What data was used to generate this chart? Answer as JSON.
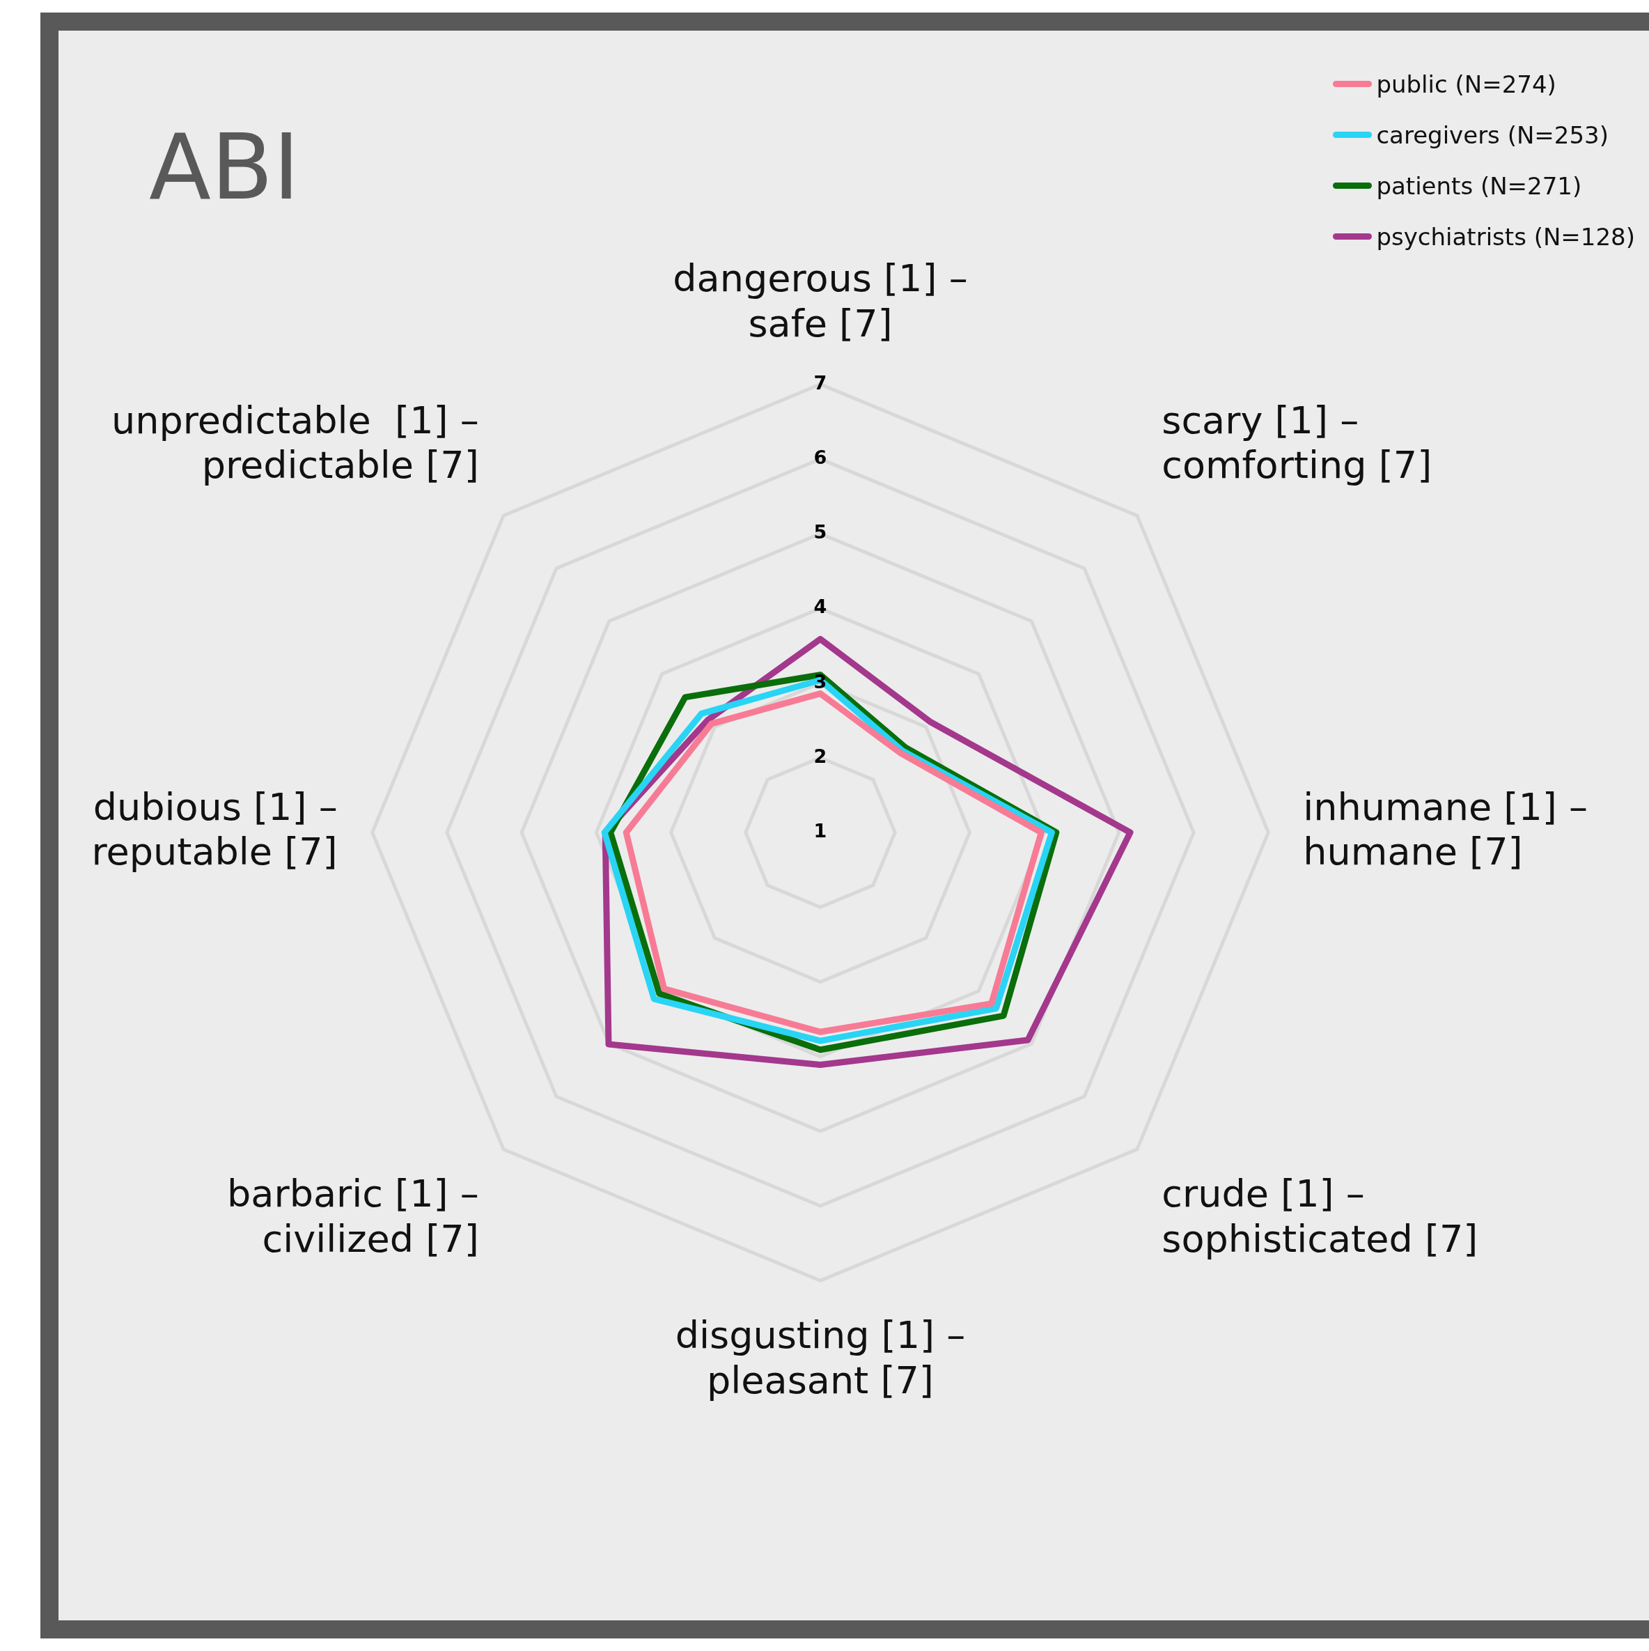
{
  "chart_data": {
    "type": "radar",
    "title": "ABI",
    "categories": [
      "dangerous [1] – safe [7]",
      "scary [1] – comforting [7]",
      "inhumane [1] – humane [7]",
      "crude [1] – sophisticated [7]",
      "disgusting [1] – pleasant [7]",
      "barbaric [1] – civilized [7]",
      "dubious [1] – reputable [7]",
      "unpredictable  [1] – predictable [7]"
    ],
    "series": [
      {
        "name": "public (N=274)",
        "color": "#f77b95",
        "values": [
          2.86,
          2.51,
          3.96,
          4.24,
          3.67,
          3.96,
          3.6,
          3.06
        ]
      },
      {
        "name": "caregivers (N=253)",
        "color": "#29d4f5",
        "values": [
          3.04,
          2.55,
          4.1,
          4.33,
          3.79,
          4.15,
          3.89,
          3.25
        ]
      },
      {
        "name": "patients (N=271)",
        "color": "#0a6e0a",
        "values": [
          3.11,
          2.61,
          4.16,
          4.47,
          3.91,
          4.05,
          3.81,
          3.56
        ]
      },
      {
        "name": "psychiatrists (N=128)",
        "color": "#a3388c",
        "values": [
          3.59,
          3.09,
          5.15,
          4.93,
          4.11,
          5.01,
          3.88,
          3.13
        ]
      }
    ],
    "ylim": [
      1,
      7
    ],
    "yticks": [
      1,
      2,
      3,
      4,
      5,
      6,
      7
    ],
    "grid": true,
    "legend": "top right"
  }
}
